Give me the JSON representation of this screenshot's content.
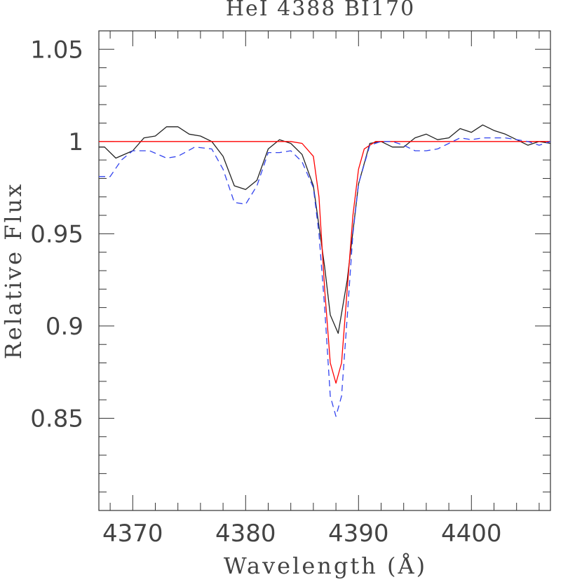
{
  "chart_data": {
    "type": "line",
    "title": "HeI 4388 BI170",
    "xlabel": "Wavelength (Å)",
    "ylabel": "Relative Flux",
    "xlim": [
      4367,
      4407
    ],
    "ylim": [
      0.8,
      1.06
    ],
    "grid": false,
    "legend": "none",
    "x_ticks": [
      {
        "value": 4370,
        "label": "4370"
      },
      {
        "value": 4380,
        "label": "4380"
      },
      {
        "value": 4390,
        "label": "4390"
      },
      {
        "value": 4400,
        "label": "4400"
      }
    ],
    "y_ticks": [
      {
        "value": 0.85,
        "label": "0.85"
      },
      {
        "value": 0.9,
        "label": "0.9"
      },
      {
        "value": 0.95,
        "label": "0.95"
      },
      {
        "value": 1.0,
        "label": "1"
      },
      {
        "value": 1.05,
        "label": "1.05"
      }
    ],
    "series": [
      {
        "color": "#222222",
        "style": "solid",
        "points": [
          [
            4367.0,
            0.997
          ],
          [
            4367.5,
            0.997
          ],
          [
            4368.5,
            0.991
          ],
          [
            4370.0,
            0.995
          ],
          [
            4371.0,
            1.002
          ],
          [
            4372.0,
            1.003
          ],
          [
            4373.0,
            1.008
          ],
          [
            4374.0,
            1.008
          ],
          [
            4375.0,
            1.004
          ],
          [
            4376.0,
            1.003
          ],
          [
            4377.0,
            1.0
          ],
          [
            4378.0,
            0.992
          ],
          [
            4379.0,
            0.976
          ],
          [
            4380.0,
            0.974
          ],
          [
            4381.0,
            0.979
          ],
          [
            4382.0,
            0.996
          ],
          [
            4383.0,
            1.001
          ],
          [
            4384.0,
            0.999
          ],
          [
            4385.0,
            0.993
          ],
          [
            4386.0,
            0.976
          ],
          [
            4387.0,
            0.932
          ],
          [
            4387.5,
            0.906
          ],
          [
            4388.2,
            0.896
          ],
          [
            4389.0,
            0.925
          ],
          [
            4390.0,
            0.977
          ],
          [
            4391.0,
            0.999
          ],
          [
            4392.0,
            1.0
          ],
          [
            4393.0,
            0.997
          ],
          [
            4394.0,
            0.997
          ],
          [
            4395.0,
            1.002
          ],
          [
            4396.0,
            1.004
          ],
          [
            4397.0,
            1.001
          ],
          [
            4398.0,
            1.002
          ],
          [
            4399.0,
            1.007
          ],
          [
            4400.0,
            1.005
          ],
          [
            4401.0,
            1.009
          ],
          [
            4402.0,
            1.006
          ],
          [
            4403.0,
            1.004
          ],
          [
            4404.0,
            1.001
          ],
          [
            4405.0,
            0.998
          ],
          [
            4406.0,
            1.0
          ],
          [
            4407.0,
            0.999
          ]
        ]
      },
      {
        "color": "#ff0000",
        "style": "solid",
        "points": [
          [
            4367.0,
            1.0
          ],
          [
            4384.0,
            1.0
          ],
          [
            4385.0,
            0.999
          ],
          [
            4386.0,
            0.992
          ],
          [
            4386.5,
            0.97
          ],
          [
            4387.0,
            0.92
          ],
          [
            4387.5,
            0.88
          ],
          [
            4388.0,
            0.869
          ],
          [
            4388.5,
            0.88
          ],
          [
            4389.0,
            0.92
          ],
          [
            4389.5,
            0.96
          ],
          [
            4390.0,
            0.985
          ],
          [
            4390.5,
            0.996
          ],
          [
            4391.5,
            1.0
          ],
          [
            4407.0,
            1.0
          ]
        ]
      },
      {
        "color": "#3344ee",
        "style": "dashed",
        "points": [
          [
            4367.0,
            0.981
          ],
          [
            4368.0,
            0.981
          ],
          [
            4369.0,
            0.99
          ],
          [
            4370.0,
            0.995
          ],
          [
            4371.5,
            0.995
          ],
          [
            4373.0,
            0.991
          ],
          [
            4374.0,
            0.992
          ],
          [
            4375.5,
            0.997
          ],
          [
            4377.0,
            0.996
          ],
          [
            4378.0,
            0.985
          ],
          [
            4379.0,
            0.967
          ],
          [
            4380.0,
            0.966
          ],
          [
            4381.0,
            0.976
          ],
          [
            4382.0,
            0.994
          ],
          [
            4383.0,
            0.994
          ],
          [
            4384.0,
            0.995
          ],
          [
            4385.0,
            0.989
          ],
          [
            4386.0,
            0.975
          ],
          [
            4386.5,
            0.95
          ],
          [
            4387.0,
            0.91
          ],
          [
            4387.5,
            0.862
          ],
          [
            4388.0,
            0.851
          ],
          [
            4388.5,
            0.862
          ],
          [
            4389.0,
            0.905
          ],
          [
            4389.5,
            0.95
          ],
          [
            4390.0,
            0.977
          ],
          [
            4391.0,
            0.998
          ],
          [
            4392.0,
            1.0
          ],
          [
            4393.0,
            1.0
          ],
          [
            4394.0,
            0.998
          ],
          [
            4395.0,
            0.995
          ],
          [
            4396.0,
            0.995
          ],
          [
            4397.0,
            0.996
          ],
          [
            4398.0,
            0.999
          ],
          [
            4399.0,
            1.002
          ],
          [
            4400.0,
            1.001
          ],
          [
            4401.0,
            1.002
          ],
          [
            4402.0,
            1.002
          ],
          [
            4403.0,
            1.002
          ],
          [
            4404.0,
            1.001
          ],
          [
            4405.0,
            1.0
          ],
          [
            4406.0,
            0.998
          ],
          [
            4407.0,
            1.0
          ]
        ]
      }
    ]
  }
}
